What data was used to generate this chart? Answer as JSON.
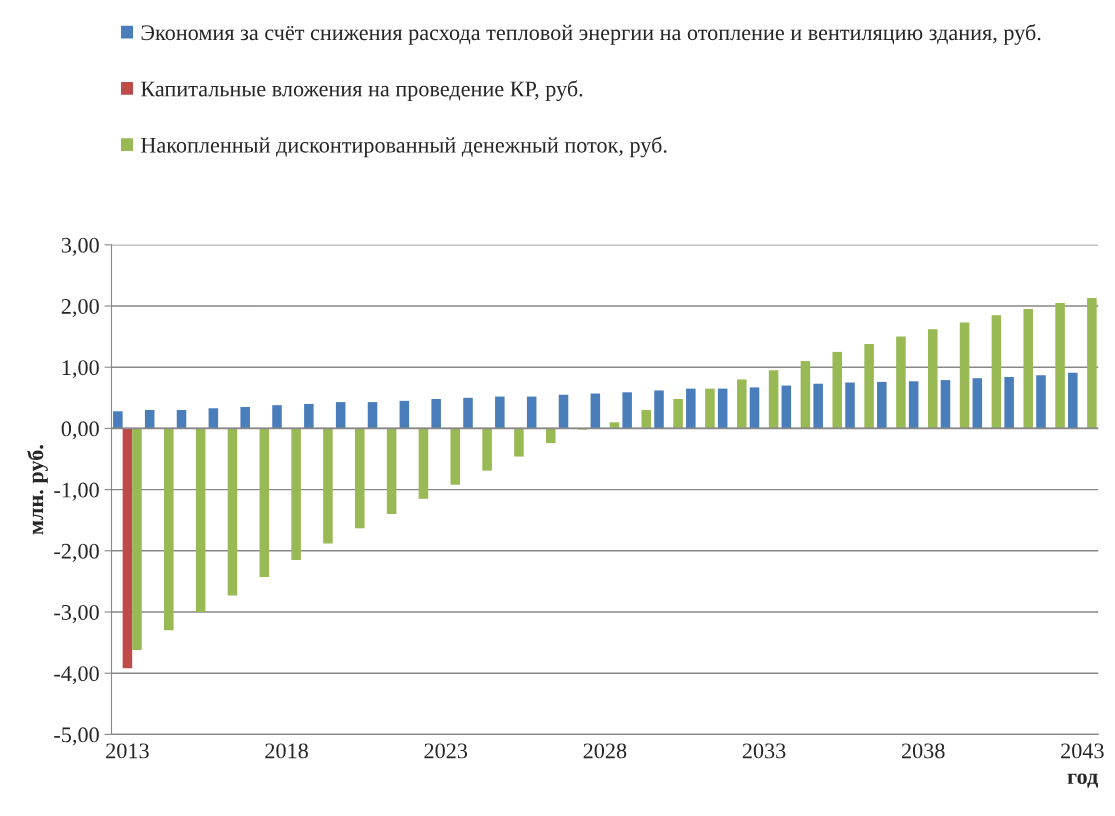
{
  "chart_data": {
    "type": "bar",
    "categories": [
      "2013",
      null,
      null,
      null,
      null,
      "2018",
      null,
      null,
      null,
      null,
      "2023",
      null,
      null,
      null,
      null,
      "2028",
      null,
      null,
      null,
      null,
      "2033",
      null,
      null,
      null,
      null,
      "2038",
      null,
      null,
      null,
      null,
      "2043"
    ],
    "series": [
      {
        "name": "Экономия за счёт снижения расхода тепловой энергии на отопление и вентиляцию здания, руб.",
        "color": "#4a7ebb",
        "values": [
          0.28,
          0.3,
          0.3,
          0.33,
          0.35,
          0.38,
          0.4,
          0.43,
          0.43,
          0.45,
          0.48,
          0.5,
          0.52,
          0.52,
          0.55,
          0.57,
          0.59,
          0.62,
          0.65,
          0.65,
          0.67,
          0.7,
          0.73,
          0.75,
          0.76,
          0.77,
          0.79,
          0.82,
          0.84,
          0.87,
          0.91
        ]
      },
      {
        "name": "Капитальные вложения на проведение КР, руб.",
        "color": "#be4b48",
        "values": [
          -3.92,
          null,
          null,
          null,
          null,
          null,
          null,
          null,
          null,
          null,
          null,
          null,
          null,
          null,
          null,
          null,
          null,
          null,
          null,
          null,
          null,
          null,
          null,
          null,
          null,
          null,
          null,
          null,
          null,
          null,
          null
        ]
      },
      {
        "name": "Накопленный дисконтированный денежный поток, руб.",
        "color": "#98b954",
        "values": [
          -3.62,
          -3.3,
          -3.0,
          -2.73,
          -2.43,
          -2.15,
          -1.88,
          -1.63,
          -1.4,
          -1.15,
          -0.92,
          -0.69,
          -0.46,
          -0.24,
          -0.02,
          0.1,
          0.3,
          0.48,
          0.65,
          0.8,
          0.95,
          1.1,
          1.25,
          1.38,
          1.5,
          1.62,
          1.73,
          1.85,
          1.95,
          2.05,
          2.13
        ]
      }
    ],
    "ylabel": "млн. руб.",
    "xlabel": "год",
    "ylim": [
      -5,
      3
    ],
    "yticks": [
      {
        "value": -5,
        "label": "-5,00"
      },
      {
        "value": -4,
        "label": "-4,00"
      },
      {
        "value": -3,
        "label": "-3,00"
      },
      {
        "value": -2,
        "label": "-2,00"
      },
      {
        "value": -1,
        "label": "-1,00"
      },
      {
        "value": 0,
        "label": "0,00"
      },
      {
        "value": 1,
        "label": "1,00"
      },
      {
        "value": 2,
        "label": "2,00"
      },
      {
        "value": 3,
        "label": "3,00"
      }
    ],
    "grid": "y",
    "legend": "top left"
  }
}
